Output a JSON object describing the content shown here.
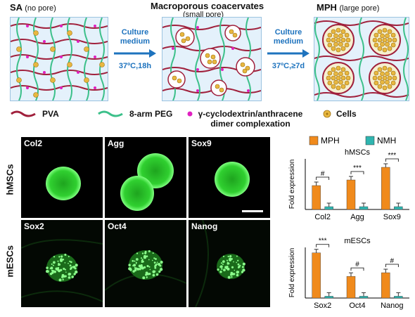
{
  "top": {
    "panels": [
      {
        "title": "SA",
        "subtitle": "(no pore)"
      },
      {
        "title": "Macroporous coacervates",
        "subtitle": "(small pore)"
      },
      {
        "title": "MPH",
        "subtitle": "(large pore)"
      }
    ],
    "arrows": [
      {
        "line1": "Culture",
        "line2": "medium",
        "line3": "37ºC,18h"
      },
      {
        "line1": "Culture",
        "line2": "medium",
        "line3": "37ºC,≥7d"
      }
    ]
  },
  "legend": {
    "pva": "PVA",
    "peg": "8-arm PEG",
    "complex_line1": "γ-cyclodextrin/anthracene",
    "complex_line2": "dimer complexation",
    "cells": "Cells"
  },
  "micrographs": {
    "row_labels": [
      "hMSCs",
      "mESCs"
    ],
    "top_row": [
      "Col2",
      "Agg",
      "Sox9"
    ],
    "bottom_row": [
      "Sox2",
      "Oct4",
      "Nanog"
    ]
  },
  "colors": {
    "mph": "#f08a1c",
    "nmh": "#2fb5b0",
    "pva": "#a0203c",
    "peg": "#3cc08a",
    "complex": "#e020c0",
    "cells": "#e8b840",
    "arrow": "#1e73be",
    "panel_bg": "#e4f1fb",
    "fluor": "#2aff2a"
  },
  "chart_legend": {
    "series": [
      "MPH",
      "NMH"
    ]
  },
  "chart_data": [
    {
      "type": "bar",
      "title": "hMSCs",
      "ylabel": "Fold expression",
      "categories": [
        "Col2",
        "Agg",
        "Sox9"
      ],
      "series": [
        {
          "name": "MPH",
          "values": [
            8.5,
            10.5,
            15.0
          ]
        },
        {
          "name": "NMH",
          "values": [
            1.0,
            1.0,
            1.0
          ]
        }
      ],
      "ylim": [
        0,
        18
      ],
      "significance": [
        "#",
        "***",
        "***"
      ]
    },
    {
      "type": "bar",
      "title": "mESCs",
      "ylabel": "Fold expression",
      "categories": [
        "Sox2",
        "Oct4",
        "Nanog"
      ],
      "series": [
        {
          "name": "MPH",
          "values": [
            25.0,
            12.0,
            14.0
          ]
        },
        {
          "name": "NMH",
          "values": [
            1.0,
            1.0,
            1.0
          ]
        }
      ],
      "ylim": [
        0,
        28
      ],
      "significance": [
        "***",
        "#",
        "#"
      ]
    }
  ]
}
